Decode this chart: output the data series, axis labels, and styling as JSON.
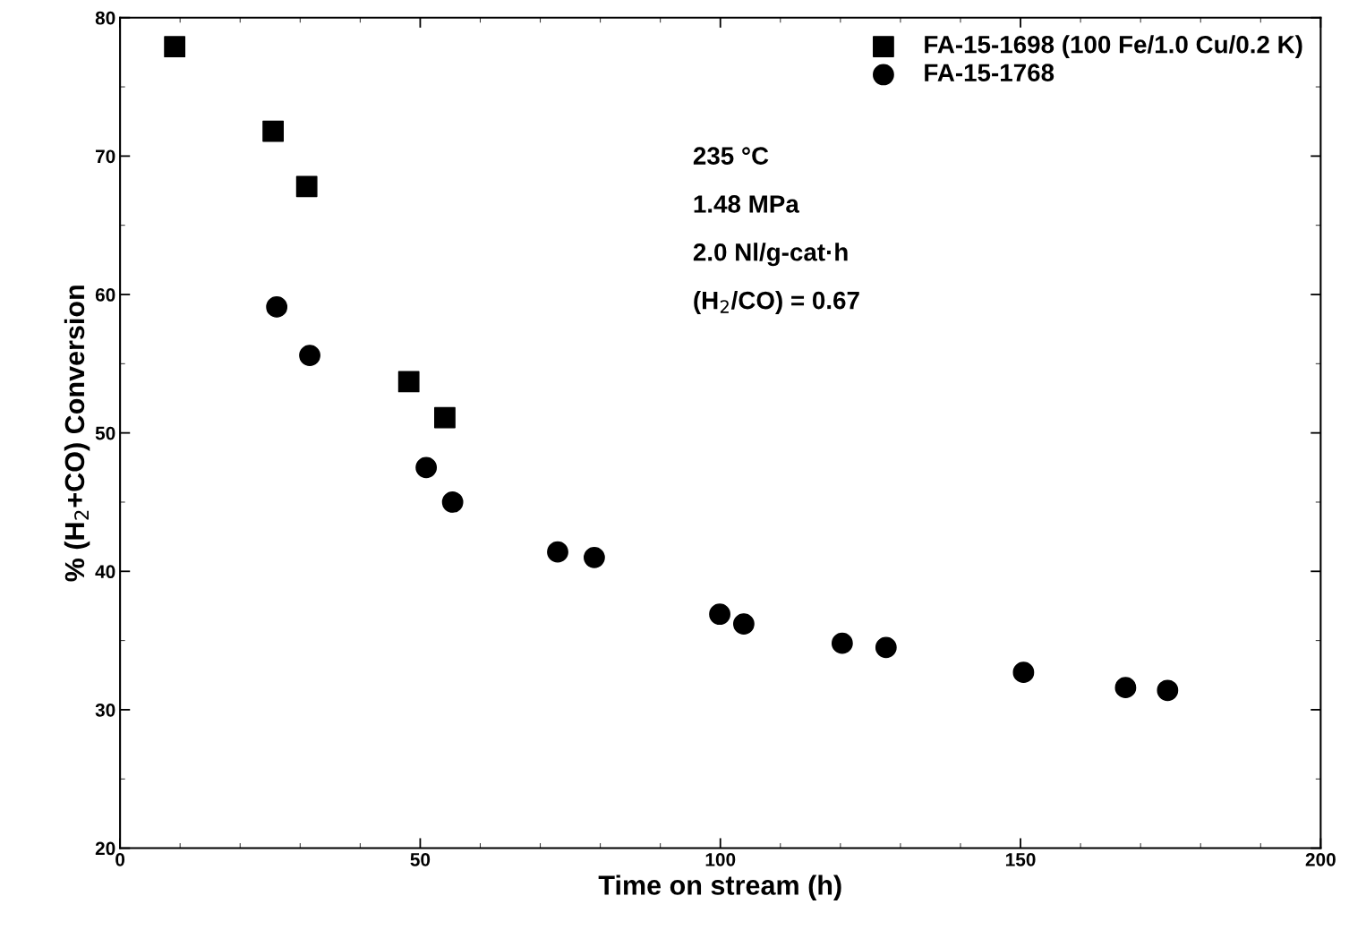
{
  "chart_data": {
    "type": "scatter",
    "xlabel": "Time on stream (h)",
    "ylabel": "% (H$_{2}$+CO) Conversion",
    "xlim": [
      0,
      200
    ],
    "xticks": [
      0,
      50,
      100,
      150,
      200
    ],
    "ylim": [
      20,
      80
    ],
    "yticks": [
      20,
      30,
      40,
      50,
      60,
      70,
      80
    ],
    "series": [
      {
        "name": "FA-15-1698 (100 Fe/1.0 Cu/0.2 K)",
        "color": "#000000",
        "marker": "square",
        "x": [
          9.1,
          25.5,
          31.1,
          48.1,
          54.1
        ],
        "values": [
          77.9,
          71.8,
          67.8,
          53.7,
          51.1
        ]
      },
      {
        "name": "FA-15-1768",
        "color": "#000000",
        "marker": "circle",
        "x": [
          26.1,
          31.6,
          51.0,
          55.4,
          72.9,
          79.0,
          99.9,
          103.9,
          120.3,
          127.6,
          150.5,
          167.5,
          174.5
        ],
        "values": [
          59.1,
          55.6,
          47.5,
          45.0,
          41.4,
          41.0,
          36.9,
          36.2,
          34.8,
          34.5,
          32.7,
          31.6,
          31.4
        ]
      }
    ],
    "annotations": [
      "235 °C",
      "1.48 MPa",
      "2.0 Nl/g-cat·h",
      "(H$_{2}$/CO) = 0.67"
    ],
    "legend": "top right",
    "grid": false
  }
}
